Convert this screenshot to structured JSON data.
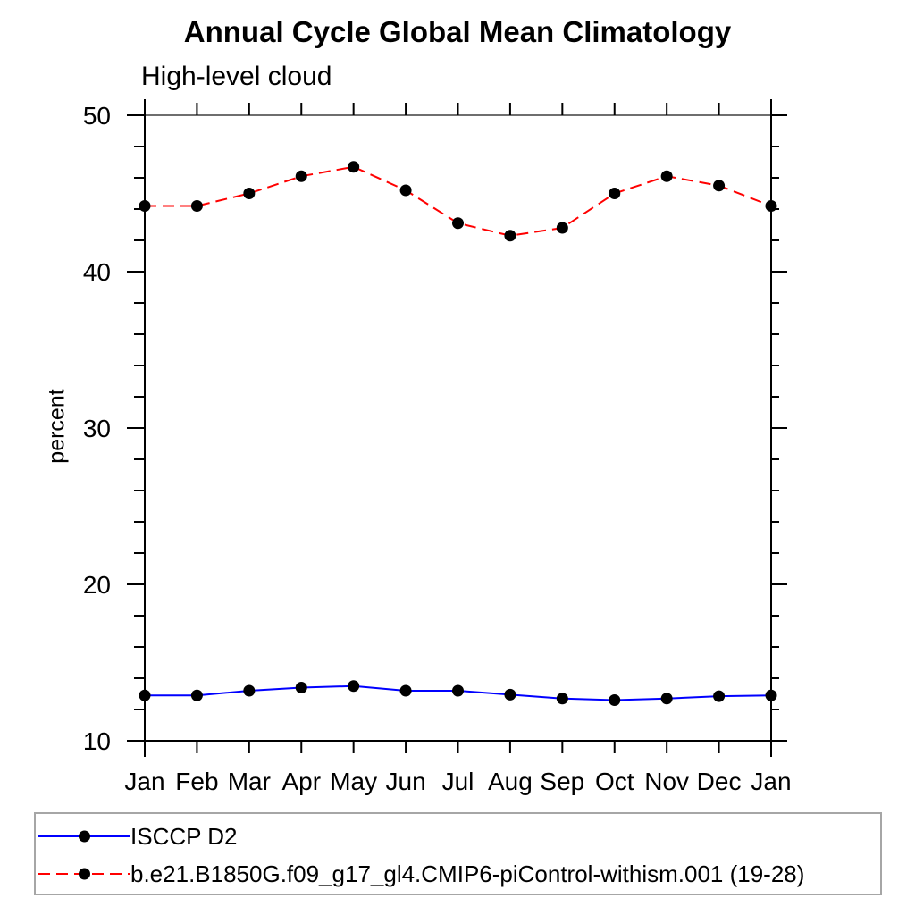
{
  "chart_data": {
    "type": "line",
    "title": "Annual Cycle Global Mean Climatology",
    "subtitle": "High-level cloud",
    "ylabel": "percent",
    "x_categories": [
      "Jan",
      "Feb",
      "Mar",
      "Apr",
      "May",
      "Jun",
      "Jul",
      "Aug",
      "Sep",
      "Oct",
      "Nov",
      "Dec",
      "Jan"
    ],
    "ylim": [
      10,
      50
    ],
    "yticks": [
      10,
      20,
      30,
      40,
      50
    ],
    "y_minor_step": 2,
    "grid": false,
    "legend_position": "bottom-left-box",
    "axis_color": "#000000",
    "legend_border_color": "#a6a6a6",
    "marker": "filled-circle",
    "marker_color": "#000000",
    "series": [
      {
        "name": "ISCCP D2",
        "color": "#0000ff",
        "line_style": "solid",
        "values": [
          12.9,
          12.9,
          13.2,
          13.4,
          13.5,
          13.2,
          13.2,
          12.95,
          12.7,
          12.6,
          12.7,
          12.85,
          12.9
        ]
      },
      {
        "name": "b.e21.B1850G.f09_g17_gl4.CMIP6-piControl-withism.001 (19-28)",
        "color": "#ff0000",
        "line_style": "dashed",
        "values": [
          44.2,
          44.2,
          45.0,
          46.1,
          46.7,
          45.2,
          43.1,
          42.3,
          42.8,
          45.0,
          46.1,
          45.5,
          44.2
        ]
      }
    ]
  }
}
